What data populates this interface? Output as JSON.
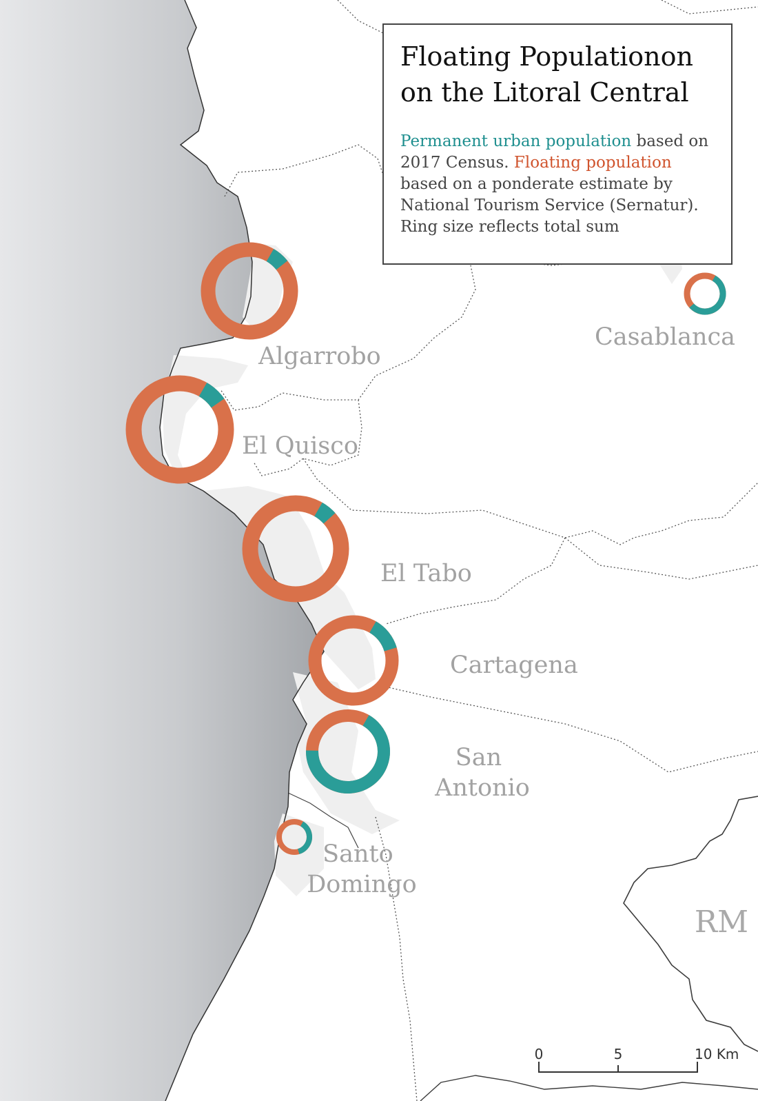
{
  "legend": {
    "title_line1": "Floating Populationon",
    "title_line2": "on the Litoral Central",
    "permanent_label": "Permanent urban population",
    "text_part1": " based on 2017 Census. ",
    "floating_label": "Floating population",
    "text_part2": " based on a ponderate estimate by National Tourism Service (Sernatur). Ring size reflects total sum"
  },
  "colors": {
    "permanent": "#2a9d98",
    "floating": "#d9714a",
    "sea_dark": "#a9acb0",
    "sea_light": "#e3e4e6",
    "urban": "#efefef",
    "boundary": "#555555"
  },
  "places": [
    {
      "name_lines": [
        "Algarrobo"
      ],
      "permanent_share": 0.06
    },
    {
      "name_lines": [
        "El Quisco"
      ],
      "permanent_share": 0.07
    },
    {
      "name_lines": [
        "El Tabo"
      ],
      "permanent_share": 0.05
    },
    {
      "name_lines": [
        "Cartagena"
      ],
      "permanent_share": 0.12
    },
    {
      "name_lines": [
        "San",
        "Antonio"
      ],
      "permanent_share": 0.67
    },
    {
      "name_lines": [
        "Santo",
        "Domingo"
      ],
      "permanent_share": 0.37
    },
    {
      "name_lines": [
        "Casablanca"
      ],
      "permanent_share": 0.55
    }
  ],
  "region_label": "RM",
  "scale_bar": {
    "ticks": [
      "0",
      "5",
      "10"
    ],
    "unit": "Km"
  }
}
